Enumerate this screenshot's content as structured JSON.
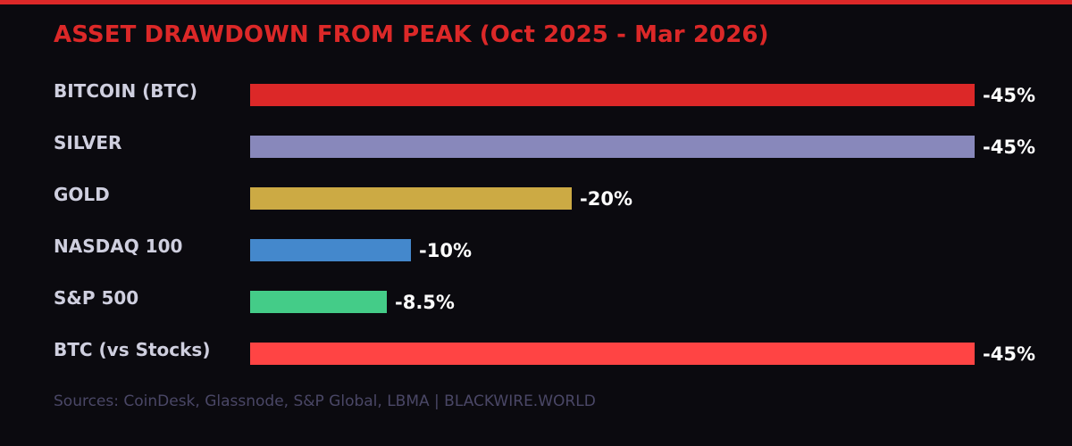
{
  "title": "ASSET DRAWDOWN FROM PEAK (Oct 2025 - Mar 2026)",
  "footer": "Sources: CoinDesk, Glassnode, S&P Global, LBMA | BLACKWIRE.WORLD",
  "colors": {
    "background": "#0b0a0f",
    "accent": "#dc2828",
    "label": "#cfcfdf",
    "value": "#ffffff",
    "footer": "#4a4766"
  },
  "rows": [
    {
      "label": "BITCOIN (BTC)",
      "value": -45,
      "display": "-45%",
      "color": "#dc2828"
    },
    {
      "label": "SILVER",
      "value": -45,
      "display": "-45%",
      "color": "#8888bb"
    },
    {
      "label": "GOLD",
      "value": -20,
      "display": "-20%",
      "color": "#ccaa44"
    },
    {
      "label": "NASDAQ 100",
      "value": -10,
      "display": "-10%",
      "color": "#4488cc"
    },
    {
      "label": "S&P 500",
      "value": -8.5,
      "display": "-8.5%",
      "color": "#44cc88"
    },
    {
      "label": "BTC (vs Stocks)",
      "value": -45,
      "display": "-45%",
      "color": "#ff4444"
    }
  ],
  "chart_data": {
    "type": "bar",
    "orientation": "horizontal",
    "title": "ASSET DRAWDOWN FROM PEAK (Oct 2025 - Mar 2026)",
    "categories": [
      "BITCOIN (BTC)",
      "SILVER",
      "GOLD",
      "NASDAQ 100",
      "S&P 500",
      "BTC (vs Stocks)"
    ],
    "values": [
      -45,
      -45,
      -20,
      -10,
      -8.5,
      -45
    ],
    "value_labels": [
      "-45%",
      "-45%",
      "-20%",
      "-10%",
      "-8.5%",
      "-45%"
    ],
    "colors": [
      "#dc2828",
      "#8888bb",
      "#ccaa44",
      "#4488cc",
      "#44cc88",
      "#ff4444"
    ],
    "xlabel": "",
    "ylabel": "",
    "unit": "%",
    "grid": false,
    "legend": false,
    "source": "Sources: CoinDesk, Glassnode, S&P Global, LBMA | BLACKWIRE.WORLD"
  }
}
